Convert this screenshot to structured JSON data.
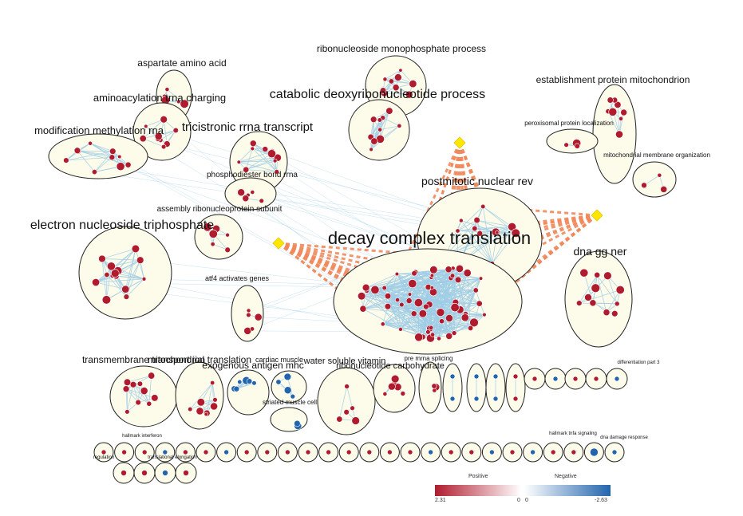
{
  "clusters": [
    {
      "id": "aspartate",
      "label": "aspartate amino acid",
      "size": "medium"
    },
    {
      "id": "aminoacylation",
      "label": "aminoacylation trna charging",
      "size": "medium"
    },
    {
      "id": "modification",
      "label": "modification methylation rna",
      "size": "medium"
    },
    {
      "id": "tricistronic",
      "label": "tricistronic rrna transcript",
      "size": "large"
    },
    {
      "id": "phosphodiester",
      "label": "phosphodiester bond rrna",
      "size": "small"
    },
    {
      "id": "assembly",
      "label": "assembly ribonucleoprotein subunit",
      "size": "small"
    },
    {
      "id": "electron",
      "label": "electron nucleoside triphosphate",
      "size": "large"
    },
    {
      "id": "ribomono",
      "label": "ribonucleoside monophosphate process",
      "size": "medium"
    },
    {
      "id": "catabolic",
      "label": "catabolic deoxyribonucleotide process",
      "size": "large"
    },
    {
      "id": "establishment",
      "label": "establishment protein mitochondrion",
      "size": "medium"
    },
    {
      "id": "peroxisomal",
      "label": "peroxisomal protein localization",
      "size": "tiny"
    },
    {
      "id": "mitomembrane",
      "label": "mitochondrial membrane organization",
      "size": "tiny"
    },
    {
      "id": "postmitotic",
      "label": "postmitotic nuclear rev",
      "size": "large"
    },
    {
      "id": "decay",
      "label": "decay complex translation",
      "size": "huge"
    },
    {
      "id": "dnagg",
      "label": "dna gg ner",
      "size": "large"
    },
    {
      "id": "atf4",
      "label": "atf4 activates genes",
      "size": "small"
    },
    {
      "id": "transmembrane",
      "label": "transmembrane transport ion",
      "size": "large"
    },
    {
      "id": "mitotranslation",
      "label": "mitochondrial translation",
      "size": "large"
    },
    {
      "id": "exogenous",
      "label": "exogenous antigen mhc",
      "size": "large"
    },
    {
      "id": "cardiac",
      "label": "cardiac muscle",
      "size": "small"
    },
    {
      "id": "water",
      "label": "water soluble vitamin",
      "size": "large"
    },
    {
      "id": "ribocarb",
      "label": "ribonucleotide carbohydrate",
      "size": "large"
    },
    {
      "id": "premrna",
      "label": "pre mrna splicing",
      "size": "small"
    },
    {
      "id": "striated",
      "label": "striated muscle cell",
      "size": "small"
    },
    {
      "id": "part3",
      "label": "differentiation part 3",
      "size": "tiny"
    },
    {
      "id": "hallmarkifn",
      "label": "hallmark interferon",
      "size": "tiny"
    },
    {
      "id": "hallmarktnfa",
      "label": "hallmark tnfa signaling",
      "size": "tiny"
    },
    {
      "id": "dnadamage",
      "label": "dna damage response",
      "size": "tiny"
    },
    {
      "id": "elongation",
      "label": "translational elongation",
      "size": "tiny"
    },
    {
      "id": "regulation",
      "label": "regulation",
      "size": "tiny"
    }
  ],
  "legend": {
    "positive_label": "Positive",
    "negative_label": "Negative",
    "max_value": "2.31",
    "zero_left": "0",
    "zero_right": "0",
    "min_value": "-2.63",
    "positive_color": "#b01c2e",
    "negative_color": "#2265ad",
    "neutral_color": "#ffffff"
  },
  "colors": {
    "cluster_fill": "#fdfbea",
    "edge": "#9fcde6",
    "dashed_edge": "#f08a5c",
    "diamond": "#ffe600"
  }
}
